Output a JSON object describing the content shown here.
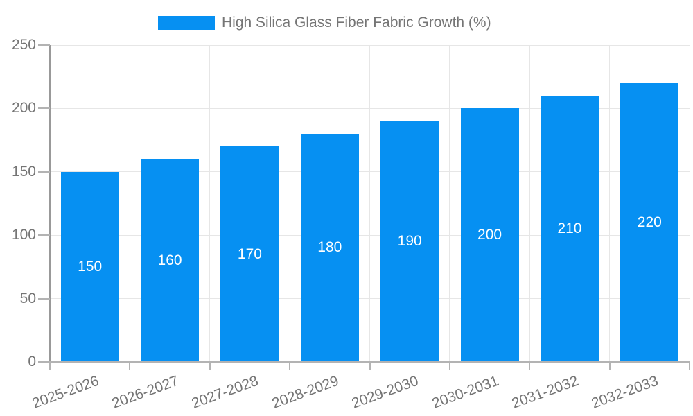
{
  "legend": {
    "label": "High Silica Glass Fiber Fabric Growth (%)"
  },
  "colors": {
    "bar": "#0690F2",
    "grid": "#E6E6E6",
    "y_axis": "#999999",
    "x_axis": "#B3B3B3",
    "tick_text": "#757575",
    "bar_label_text": "#FFFFFF"
  },
  "chart_data": {
    "type": "bar",
    "title": "",
    "series_name": "High Silica Glass Fiber Fabric Growth (%)",
    "categories": [
      "2025-2026",
      "2026-2027",
      "2027-2028",
      "2028-2029",
      "2029-2030",
      "2030-2031",
      "2031-2032",
      "2032-2033"
    ],
    "values": [
      150,
      160,
      170,
      180,
      190,
      200,
      210,
      220
    ],
    "value_labels_shown": true,
    "xlabel": "",
    "ylabel": "",
    "ylim": [
      0,
      250
    ],
    "yticks": [
      0,
      50,
      100,
      150,
      200,
      250
    ],
    "grid": true,
    "legend_position": "top",
    "x_tick_rotation_deg": -20
  }
}
